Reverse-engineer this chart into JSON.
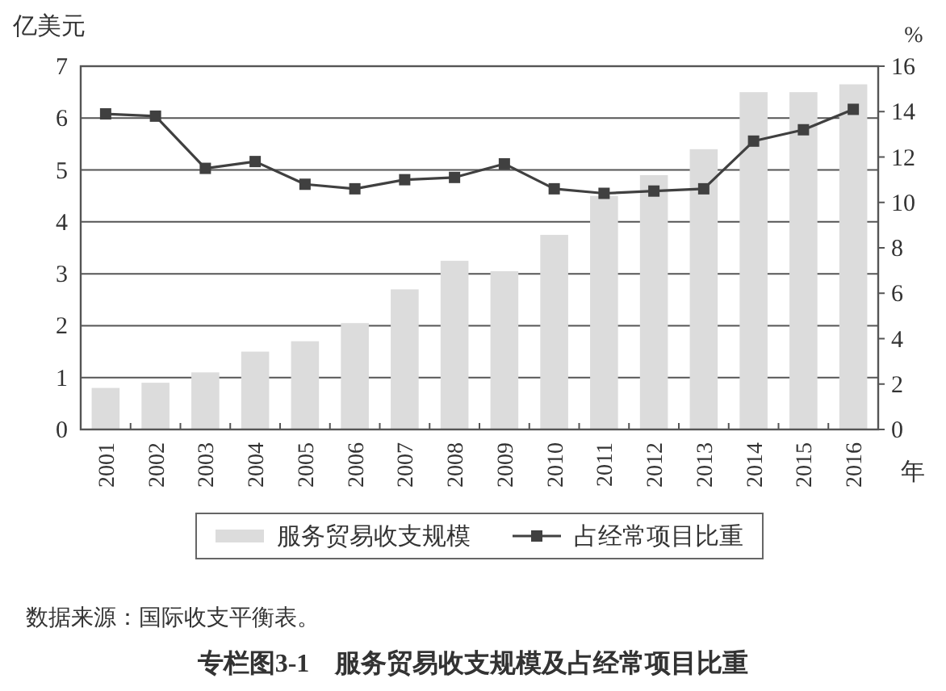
{
  "chart_data": {
    "type": "bar",
    "title": "专栏图3-1　服务贸易收支规模及占经常项目比重",
    "annotations": [
      "数据来源：国际收支平衡表。"
    ],
    "ylabel": "亿美元",
    "y2label": "%",
    "xlabel": "年",
    "categories": [
      "2001",
      "2002",
      "2003",
      "2004",
      "2005",
      "2006",
      "2007",
      "2008",
      "2009",
      "2010",
      "2011",
      "2012",
      "2013",
      "2014",
      "2015",
      "2016"
    ],
    "series": [
      {
        "name": "服务贸易收支规模",
        "color": "#dcdcdc",
        "values": [
          0.8,
          0.9,
          1.1,
          1.5,
          1.7,
          2.05,
          2.7,
          3.25,
          3.05,
          3.75,
          4.5,
          4.9,
          5.4,
          6.5,
          6.5,
          6.65
        ]
      },
      {
        "name": "占经常项目比重",
        "type": "line",
        "axis": "y2",
        "color": "#404040",
        "values": [
          13.9,
          13.8,
          11.5,
          11.8,
          10.8,
          10.6,
          11.0,
          11.1,
          11.7,
          10.6,
          10.4,
          10.5,
          10.6,
          12.7,
          13.2,
          14.1
        ]
      }
    ],
    "ylim": [
      0,
      7
    ],
    "yticks": [
      0,
      1,
      2,
      3,
      4,
      5,
      6,
      7
    ],
    "y2lim": [
      0,
      16
    ],
    "y2ticks": [
      0,
      2,
      4,
      6,
      8,
      10,
      12,
      14,
      16
    ],
    "grid": "y",
    "legend": "bottom",
    "marker": "square",
    "line_style": "solid"
  }
}
